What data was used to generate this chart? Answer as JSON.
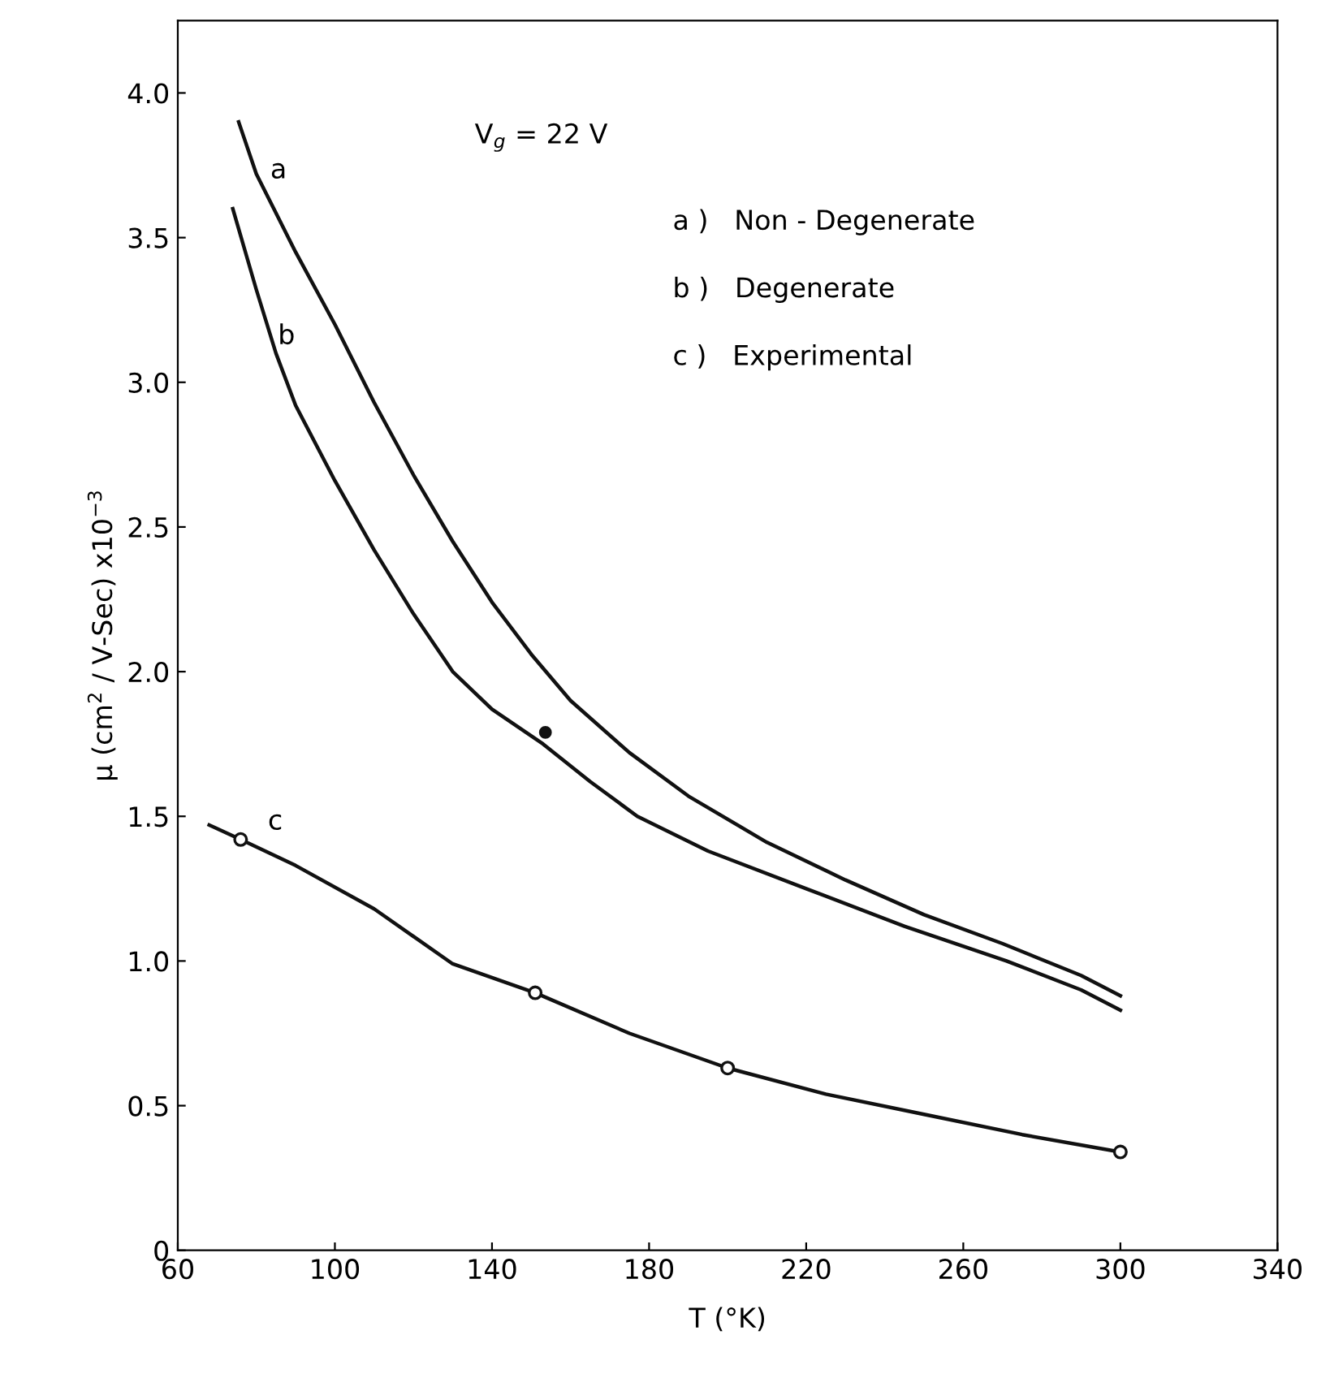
{
  "chart_data": {
    "type": "line",
    "xlabel": "T (°K)",
    "ylabel": "μ (cm$^{2}$ / V-Sec) x10$^{−3}$",
    "xlim": [
      60,
      340
    ],
    "ylim": [
      0,
      4.25
    ],
    "xticks": [
      60,
      100,
      140,
      180,
      220,
      260,
      300,
      340
    ],
    "yticks": [
      0,
      0.5,
      {
        "value": 1,
        "label": "1.0"
      },
      1.5,
      {
        "value": 2,
        "label": "2.0"
      },
      2.5,
      {
        "value": 3,
        "label": "3.0"
      },
      3.5,
      {
        "value": 4,
        "label": "4.0"
      }
    ],
    "grid": false,
    "legend": false,
    "series": [
      {
        "color": "#111111",
        "x": [
          75.5,
          80,
          90,
          100,
          110,
          120,
          130,
          140,
          150,
          160,
          175,
          190,
          210,
          230,
          250,
          270,
          290,
          300
        ],
        "values": [
          3.9,
          3.72,
          3.45,
          3.2,
          2.93,
          2.68,
          2.45,
          2.24,
          2.06,
          1.9,
          1.72,
          1.57,
          1.41,
          1.28,
          1.16,
          1.06,
          0.95,
          0.88
        ]
      },
      {
        "color": "#111111",
        "x": [
          74,
          80,
          85,
          90,
          100,
          110,
          120,
          130,
          140,
          153,
          165,
          177,
          195,
          220,
          245,
          271,
          290,
          300
        ],
        "values": [
          3.6,
          3.32,
          3.1,
          2.92,
          2.66,
          2.42,
          2.2,
          2.0,
          1.87,
          1.75,
          1.62,
          1.5,
          1.38,
          1.25,
          1.12,
          1.0,
          0.9,
          0.83
        ]
      },
      {
        "color": "#111111",
        "x": [
          68,
          76,
          90,
          110,
          130,
          151,
          175,
          200,
          225,
          250,
          275,
          300
        ],
        "values": [
          1.47,
          1.42,
          1.33,
          1.18,
          0.99,
          0.89,
          0.75,
          0.63,
          0.54,
          0.47,
          0.4,
          0.34
        ]
      },
      {
        "type": "scatter",
        "color": "#111111",
        "marker": "circle",
        "x": [
          76,
          151,
          200,
          300
        ],
        "values": [
          1.42,
          0.89,
          0.63,
          0.34
        ]
      },
      {
        "type": "scatter",
        "color": "#111111",
        "x": [
          153.6
        ],
        "values": [
          1.79
        ]
      }
    ],
    "annotations": [
      "a",
      "b",
      "c",
      "V$_{g}$ = 22 V",
      "a )   Non - Degenerate",
      "b )   Degenerate",
      "c )   Experimental"
    ]
  }
}
